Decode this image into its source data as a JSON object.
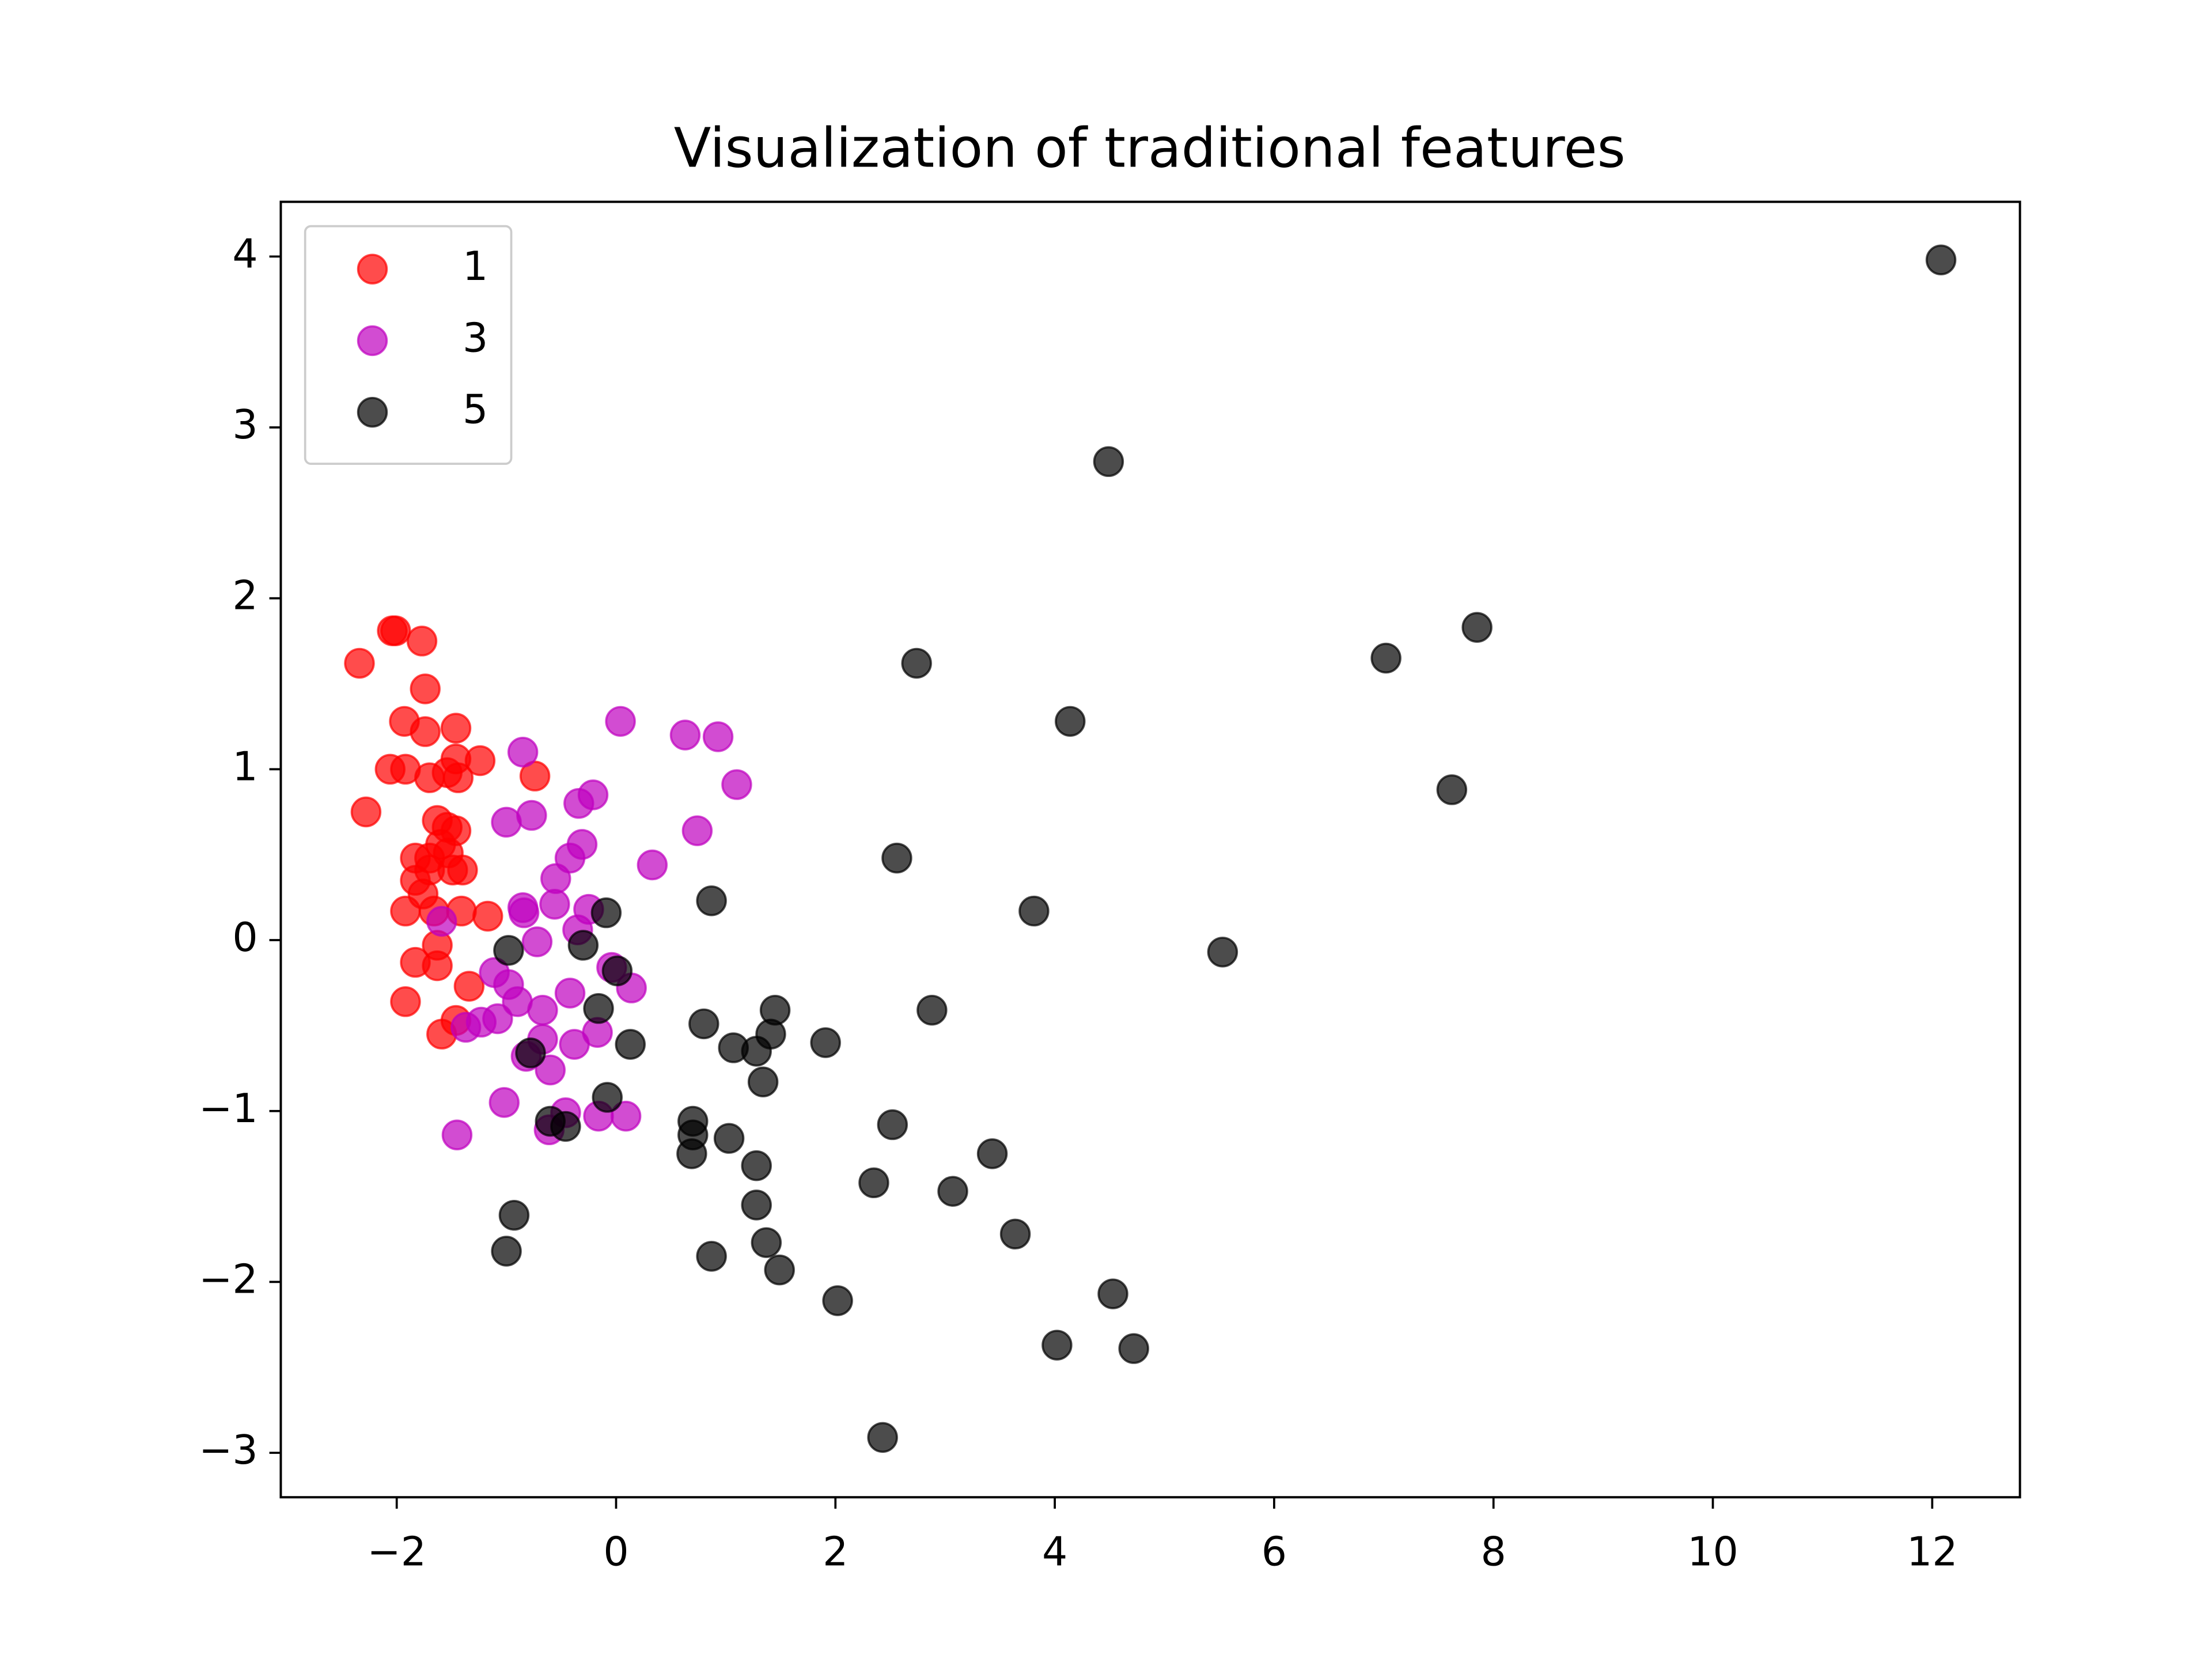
{
  "chart_data": {
    "type": "scatter",
    "title": "Visualization of traditional features",
    "xlim": [
      -3.057,
      12.8
    ],
    "ylim": [
      -3.26,
      4.32
    ],
    "xticks": [
      {
        "value": -2,
        "label": "−2"
      },
      0,
      2,
      4,
      6,
      8,
      10,
      12
    ],
    "yticks": [
      {
        "value": -3,
        "label": "−3"
      },
      {
        "value": -2,
        "label": "−2"
      },
      {
        "value": -1,
        "label": "−1"
      },
      0,
      1,
      2,
      3,
      4
    ],
    "legend": "upper left",
    "alpha": 0.7,
    "series": [
      {
        "name": "1",
        "color": "#ff0000",
        "x": [
          -2.34,
          -2.04,
          -2.01,
          -1.77,
          -1.74,
          -1.93,
          -1.74,
          -1.46,
          -2.06,
          -1.92,
          -1.7,
          -1.54,
          -1.46,
          -1.44,
          -1.24,
          -0.74,
          -2.28,
          -1.63,
          -1.54,
          -1.46,
          -1.6,
          -1.53,
          -1.7,
          -1.83,
          -1.7,
          -1.49,
          -1.4,
          -1.83,
          -1.76,
          -1.92,
          -1.66,
          -1.41,
          -1.83,
          -1.63,
          -1.63,
          -1.92,
          -1.46,
          -1.59,
          -1.34,
          -1.17
        ],
        "y": [
          1.62,
          1.81,
          1.81,
          1.75,
          1.47,
          1.28,
          1.22,
          1.24,
          1.0,
          1.0,
          0.95,
          0.98,
          1.06,
          0.95,
          1.05,
          0.96,
          0.75,
          0.7,
          0.66,
          0.64,
          0.56,
          0.51,
          0.48,
          0.48,
          0.41,
          0.41,
          0.41,
          0.35,
          0.27,
          0.17,
          0.17,
          0.17,
          -0.13,
          -0.03,
          -0.15,
          -0.36,
          -0.47,
          -0.55,
          -0.27,
          0.14
        ]
      },
      {
        "name": "3",
        "color": "#bf00bf",
        "x": [
          0.04,
          0.63,
          0.93,
          1.1,
          -0.85,
          -1.0,
          -0.77,
          -0.34,
          -0.21,
          -0.31,
          -0.42,
          -0.55,
          -0.56,
          -0.85,
          -0.84,
          0.33,
          0.74,
          -0.25,
          -1.59,
          -0.72,
          -0.35,
          -0.04,
          0.14,
          -1.11,
          -0.98,
          -0.9,
          -1.08,
          -1.23,
          -1.37,
          -0.67,
          -0.42,
          -0.17,
          -0.38,
          -0.67,
          -0.82,
          -0.6,
          -1.02,
          -0.16,
          0.09,
          -0.46,
          -1.45,
          -0.61
        ],
        "y": [
          1.28,
          1.2,
          1.19,
          0.91,
          1.1,
          0.69,
          0.73,
          0.8,
          0.85,
          0.56,
          0.48,
          0.36,
          0.21,
          0.19,
          0.16,
          0.44,
          0.64,
          0.18,
          0.11,
          -0.01,
          0.06,
          -0.16,
          -0.28,
          -0.19,
          -0.26,
          -0.36,
          -0.46,
          -0.48,
          -0.51,
          -0.41,
          -0.31,
          -0.54,
          -0.61,
          -0.58,
          -0.68,
          -0.76,
          -0.95,
          -1.03,
          -1.03,
          -1.01,
          -1.14,
          -1.11
        ]
      },
      {
        "name": "5",
        "color": "#000000",
        "x": [
          12.08,
          4.49,
          7.85,
          7.02,
          2.74,
          4.14,
          7.62,
          2.56,
          3.81,
          5.53,
          0.87,
          -0.09,
          -0.3,
          -0.98,
          0.01,
          -0.16,
          0.8,
          1.45,
          1.41,
          1.07,
          1.28,
          1.91,
          0.13,
          2.88,
          -0.78,
          1.34,
          -0.08,
          0.7,
          -0.6,
          -0.46,
          0.7,
          1.03,
          2.52,
          0.69,
          1.28,
          3.43,
          2.35,
          3.07,
          1.28,
          1.37,
          3.64,
          -0.93,
          -1.0,
          0.87,
          1.49,
          2.02,
          4.53,
          4.02,
          4.72,
          2.43
        ],
        "y": [
          3.98,
          2.8,
          1.83,
          1.65,
          1.62,
          1.28,
          0.88,
          0.48,
          0.17,
          -0.07,
          0.23,
          0.16,
          -0.03,
          -0.06,
          -0.18,
          -0.4,
          -0.49,
          -0.41,
          -0.55,
          -0.63,
          -0.65,
          -0.6,
          -0.61,
          -0.41,
          -0.66,
          -0.83,
          -0.92,
          -1.06,
          -1.06,
          -1.09,
          -1.14,
          -1.16,
          -1.08,
          -1.25,
          -1.32,
          -1.25,
          -1.42,
          -1.47,
          -1.55,
          -1.77,
          -1.72,
          -1.61,
          -1.82,
          -1.85,
          -1.93,
          -2.11,
          -2.07,
          -2.37,
          -2.39,
          -2.91
        ]
      }
    ]
  }
}
